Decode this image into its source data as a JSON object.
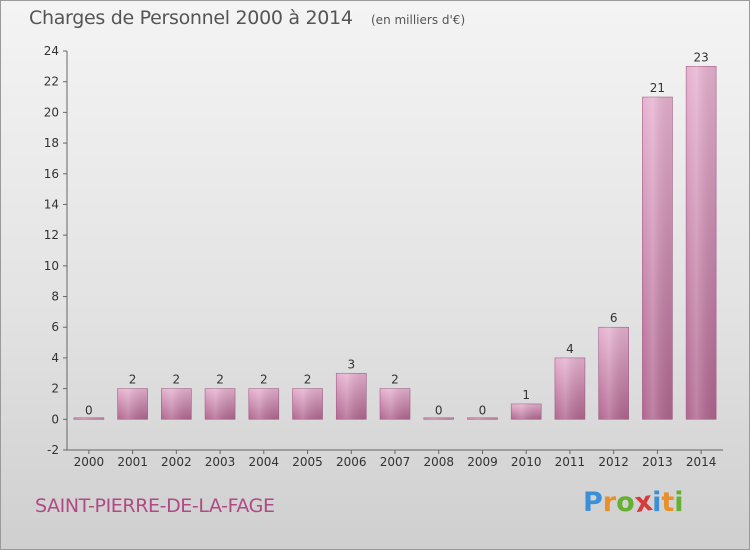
{
  "title": "Charges de Personnel 2000 à 2014",
  "subtitle": "(en milliers d'€)",
  "commune": "SAINT-PIERRE-DE-LA-FAGE",
  "logo": {
    "letters": [
      "P",
      "r",
      "o",
      "x",
      "i",
      "t",
      "i"
    ],
    "colors": [
      "#3a8fd6",
      "#e8902a",
      "#66b030",
      "#d63a3a",
      "#3a8fd6",
      "#e8902a",
      "#66b030"
    ]
  },
  "colors": {
    "bar_light": "#e7b2d0",
    "bar_dark": "#b0668f",
    "commune": "#b04a86"
  },
  "chart_data": {
    "type": "bar",
    "categories": [
      "2000",
      "2001",
      "2002",
      "2003",
      "2004",
      "2005",
      "2006",
      "2007",
      "2008",
      "2009",
      "2010",
      "2011",
      "2012",
      "2013",
      "2014"
    ],
    "values": [
      0,
      2,
      2,
      2,
      2,
      2,
      3,
      2,
      0,
      0,
      1,
      4,
      6,
      21,
      23
    ],
    "data_labels": [
      "0",
      "2",
      "2",
      "2",
      "2",
      "2",
      "3",
      "2",
      "0",
      "0",
      "1",
      "4",
      "6",
      "21",
      "23"
    ],
    "y_ticks": [
      "-2",
      "0",
      "2",
      "4",
      "6",
      "8",
      "10",
      "12",
      "14",
      "16",
      "18",
      "20",
      "22",
      "24"
    ],
    "ylim": [
      -2,
      24
    ],
    "grid": false
  }
}
